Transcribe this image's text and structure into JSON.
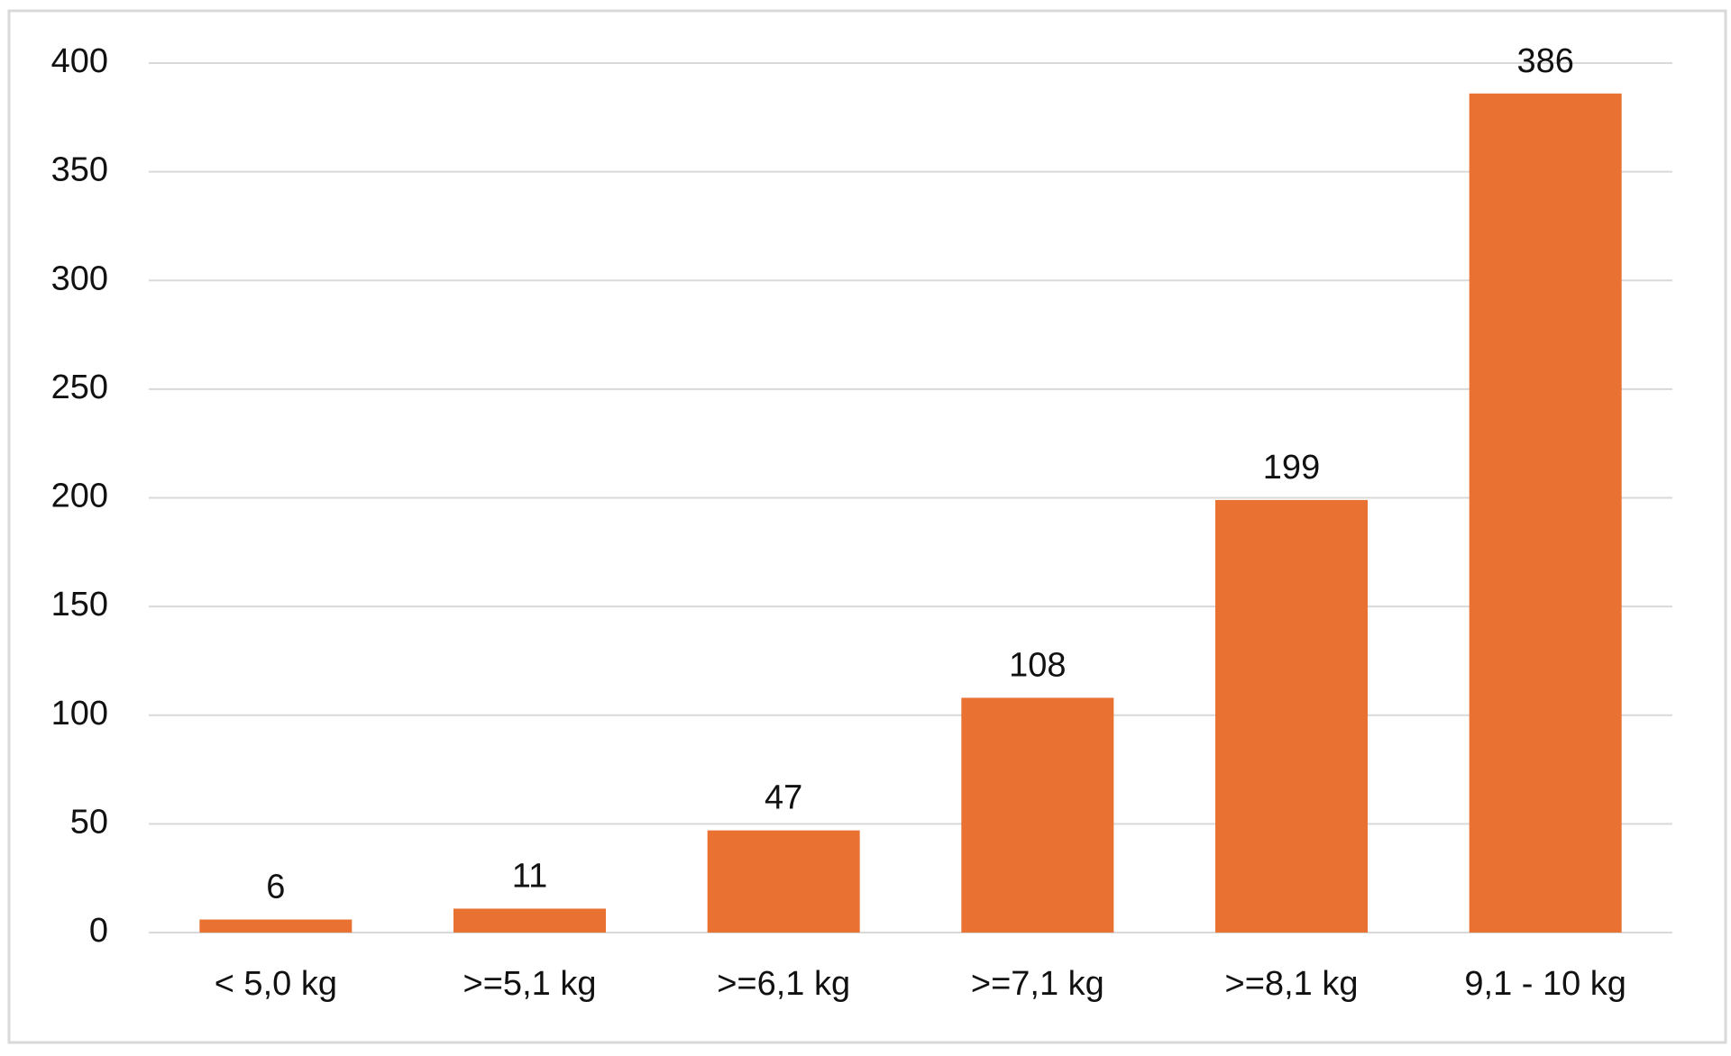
{
  "chart_data": {
    "type": "bar",
    "categories": [
      "< 5,0 kg",
      ">=5,1 kg",
      ">=6,1 kg",
      ">=7,1 kg",
      ">=8,1 kg",
      "9,1 - 10 kg"
    ],
    "values": [
      6,
      11,
      47,
      108,
      199,
      386
    ],
    "color": "#e97132",
    "ylim": [
      0,
      400
    ],
    "yticks": [
      0,
      50,
      100,
      150,
      200,
      250,
      300,
      350,
      400
    ],
    "grid": true
  }
}
